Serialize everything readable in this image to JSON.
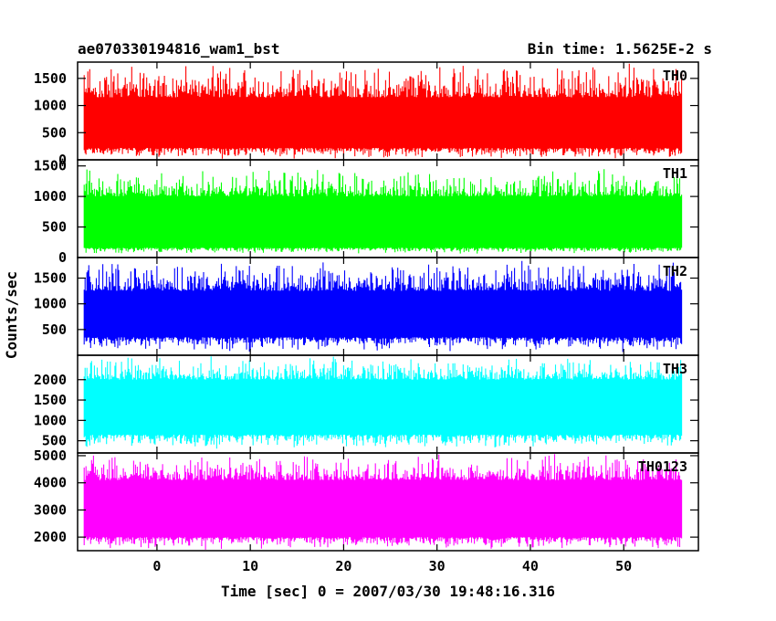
{
  "chart_data": {
    "type": "line",
    "title_left": "ae070330194816_wam1_bst",
    "title_right": "Bin time: 1.5625E-2 s",
    "xlabel": "Time [sec] 0 = 2007/03/30 19:48:16.316",
    "ylabel": "Counts/sec",
    "xlim": [
      -8.5,
      58
    ],
    "x_ticks": [
      0,
      10,
      20,
      30,
      40,
      50
    ],
    "data_x_range": [
      -7.8,
      56.2
    ],
    "bin_time_s": 0.015625,
    "grid": false,
    "panels": [
      {
        "name": "TH0",
        "color": "#ff0000",
        "ylim": [
          0,
          1800
        ],
        "yticks": [
          0,
          500,
          1000,
          1500
        ],
        "band": {
          "low_min": 10,
          "low_typ": 220,
          "high_typ": 1150,
          "high_max": 1800
        }
      },
      {
        "name": "TH1",
        "color": "#00ff00",
        "ylim": [
          0,
          1600
        ],
        "yticks": [
          0,
          500,
          1000,
          1500
        ],
        "band": {
          "low_min": 60,
          "low_typ": 160,
          "high_typ": 1000,
          "high_max": 1480
        }
      },
      {
        "name": "TH2",
        "color": "#0000ff",
        "ylim": [
          0,
          1900
        ],
        "yticks": [
          500,
          1000,
          1500
        ],
        "band": {
          "low_min": 60,
          "low_typ": 350,
          "high_typ": 1250,
          "high_max": 1900
        }
      },
      {
        "name": "TH3",
        "color": "#00ffff",
        "ylim": [
          200,
          2600
        ],
        "yticks": [
          500,
          1000,
          1500,
          2000
        ],
        "band": {
          "low_min": 300,
          "low_typ": 650,
          "high_typ": 2000,
          "high_max": 2600
        }
      },
      {
        "name": "TH0123",
        "color": "#ff00ff",
        "ylim": [
          1500,
          5100
        ],
        "yticks": [
          2000,
          3000,
          4000,
          5000
        ],
        "band": {
          "low_min": 1530,
          "low_typ": 2000,
          "high_typ": 4100,
          "high_max": 5100
        }
      }
    ]
  }
}
